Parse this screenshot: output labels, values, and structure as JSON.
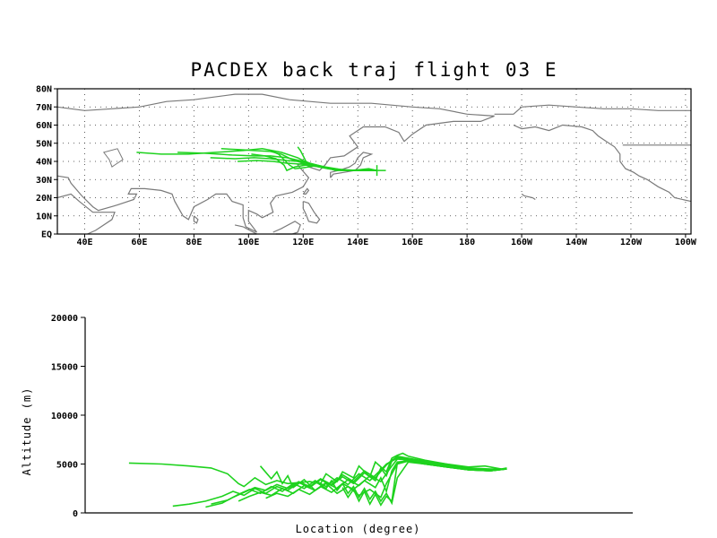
{
  "chart_data": [
    {
      "type": "map",
      "title": "PACDEX back traj flight 03 E",
      "lon_range": [
        30,
        262
      ],
      "lat_range": [
        0,
        80
      ],
      "lon_ticks": [
        {
          "v": 40,
          "label": "40E"
        },
        {
          "v": 60,
          "label": "60E"
        },
        {
          "v": 80,
          "label": "80E"
        },
        {
          "v": 100,
          "label": "100E"
        },
        {
          "v": 120,
          "label": "120E"
        },
        {
          "v": 140,
          "label": "140E"
        },
        {
          "v": 160,
          "label": "160E"
        },
        {
          "v": 180,
          "label": "180"
        },
        {
          "v": 200,
          "label": "160W"
        },
        {
          "v": 220,
          "label": "140W"
        },
        {
          "v": 240,
          "label": "120W"
        },
        {
          "v": 260,
          "label": "100W"
        }
      ],
      "lat_ticks": [
        {
          "v": 0,
          "label": "EQ"
        },
        {
          "v": 10,
          "label": "10N"
        },
        {
          "v": 20,
          "label": "20N"
        },
        {
          "v": 30,
          "label": "30N"
        },
        {
          "v": 40,
          "label": "40N"
        },
        {
          "v": 50,
          "label": "50N"
        },
        {
          "v": 60,
          "label": "60N"
        },
        {
          "v": 70,
          "label": "70N"
        },
        {
          "v": 80,
          "label": "80N"
        }
      ],
      "grid": true,
      "track_color": "#1ed21e",
      "coast_color": "#7a7a7a",
      "end_point": [
        147,
        35
      ],
      "trajectories": [
        [
          [
            59,
            45
          ],
          [
            68,
            44
          ],
          [
            78,
            44
          ],
          [
            88,
            45
          ],
          [
            98,
            46
          ],
          [
            105,
            47
          ],
          [
            112,
            45
          ],
          [
            118,
            42
          ],
          [
            122,
            39
          ],
          [
            127,
            37
          ],
          [
            132,
            35
          ],
          [
            138,
            35
          ],
          [
            144,
            36
          ],
          [
            147,
            35
          ]
        ],
        [
          [
            74,
            45
          ],
          [
            84,
            44.5
          ],
          [
            94,
            43.5
          ],
          [
            102,
            43
          ],
          [
            108,
            43
          ],
          [
            114,
            42
          ],
          [
            120,
            40
          ],
          [
            125,
            38
          ],
          [
            130,
            36
          ],
          [
            136,
            35
          ],
          [
            142,
            35.5
          ],
          [
            147,
            35
          ]
        ],
        [
          [
            86,
            42
          ],
          [
            95,
            41.5
          ],
          [
            102,
            42
          ],
          [
            108,
            41.5
          ],
          [
            114,
            40.5
          ],
          [
            118,
            40
          ],
          [
            122,
            39
          ],
          [
            128,
            37
          ],
          [
            134,
            35.5
          ],
          [
            140,
            35
          ],
          [
            147,
            35
          ]
        ],
        [
          [
            96,
            40
          ],
          [
            103,
            40.5
          ],
          [
            109,
            40
          ],
          [
            114,
            39
          ],
          [
            119,
            38.5
          ],
          [
            124,
            38
          ],
          [
            129,
            36.5
          ],
          [
            135,
            35.2
          ],
          [
            141,
            35
          ],
          [
            147,
            35
          ]
        ],
        [
          [
            101,
            44
          ],
          [
            106,
            43
          ],
          [
            110,
            41.5
          ],
          [
            113,
            38
          ],
          [
            114,
            35
          ],
          [
            117,
            37
          ],
          [
            121,
            38
          ],
          [
            126,
            37
          ],
          [
            131,
            35.5
          ],
          [
            137,
            35
          ],
          [
            143,
            35
          ],
          [
            147,
            35
          ]
        ],
        [
          [
            108,
            46
          ],
          [
            111,
            44
          ],
          [
            113,
            41
          ],
          [
            115,
            38
          ],
          [
            117,
            36
          ],
          [
            120,
            36.5
          ],
          [
            124,
            37.5
          ],
          [
            129,
            36
          ],
          [
            134,
            35
          ],
          [
            140,
            35
          ],
          [
            147,
            35
          ]
        ],
        [
          [
            118,
            48
          ],
          [
            119,
            46
          ],
          [
            120,
            43
          ],
          [
            121,
            40
          ],
          [
            123,
            38.5
          ],
          [
            127,
            37
          ],
          [
            132,
            35.5
          ],
          [
            138,
            35
          ],
          [
            144,
            35.2
          ],
          [
            147,
            35
          ]
        ],
        [
          [
            90,
            47
          ],
          [
            96,
            46.5
          ],
          [
            102,
            46
          ],
          [
            108,
            45.5
          ],
          [
            112,
            44
          ],
          [
            116,
            41
          ],
          [
            120,
            39
          ],
          [
            125,
            37.5
          ],
          [
            130,
            36
          ],
          [
            136,
            35.3
          ],
          [
            142,
            35
          ],
          [
            147,
            35
          ]
        ]
      ]
    },
    {
      "type": "line",
      "xlabel": "Location (degree)",
      "ylabel": "Altitude (m)",
      "ylim": [
        0,
        20000
      ],
      "yticks": [
        0,
        5000,
        10000,
        15000,
        20000
      ],
      "xlim": [
        0,
        100
      ],
      "line_color": "#1ed21e",
      "series": [
        {
          "x": [
            8,
            14,
            19,
            23,
            26,
            28,
            29,
            31,
            33,
            35,
            37,
            39,
            41,
            43,
            44,
            46,
            47,
            49,
            50,
            52,
            53,
            55,
            56,
            57,
            58,
            59,
            62,
            66,
            70,
            73,
            76,
            77
          ],
          "y": [
            5100,
            5000,
            4800,
            4600,
            4000,
            3000,
            2700,
            3600,
            2900,
            3300,
            3000,
            3100,
            3200,
            3000,
            4000,
            3200,
            4200,
            3600,
            4800,
            3700,
            5200,
            4200,
            5600,
            5900,
            6100,
            5800,
            5400,
            5000,
            4700,
            4800,
            4500,
            4600
          ]
        },
        {
          "x": [
            16,
            19,
            22,
            25,
            27,
            29,
            31,
            33,
            35,
            37,
            39,
            41,
            43,
            45,
            47,
            49,
            51,
            53,
            54,
            55,
            56,
            57,
            59,
            62,
            66,
            70,
            74,
            77
          ],
          "y": [
            700,
            900,
            1200,
            1700,
            2200,
            1800,
            2500,
            2000,
            2700,
            2300,
            3100,
            2600,
            3400,
            2800,
            3700,
            3000,
            4100,
            3300,
            4600,
            3800,
            5300,
            5800,
            5600,
            5300,
            5000,
            4600,
            4500,
            4500
          ]
        },
        {
          "x": [
            22,
            25,
            27,
            29,
            31,
            33,
            35,
            37,
            39,
            41,
            43,
            45,
            47,
            49,
            51,
            53,
            55,
            56,
            57,
            59,
            62,
            66,
            70,
            74,
            77
          ],
          "y": [
            600,
            1000,
            1600,
            2100,
            2600,
            2300,
            2900,
            2500,
            3200,
            2700,
            3500,
            2900,
            3900,
            3200,
            4300,
            3600,
            4900,
            5400,
            5700,
            5500,
            5200,
            4900,
            4600,
            4400,
            4500
          ]
        },
        {
          "x": [
            23,
            26,
            28,
            30,
            32,
            34,
            36,
            38,
            40,
            42,
            44,
            46,
            48,
            50,
            52,
            54,
            55,
            57,
            59,
            62,
            66,
            70,
            74,
            77
          ],
          "y": [
            900,
            1300,
            1900,
            2400,
            2000,
            2700,
            2200,
            3000,
            2500,
            3300,
            2700,
            3600,
            2900,
            4000,
            3300,
            4400,
            5000,
            5600,
            5500,
            5200,
            4800,
            4600,
            4400,
            4500
          ]
        },
        {
          "x": [
            28,
            30,
            32,
            34,
            36,
            38,
            40,
            42,
            44,
            46,
            48,
            50,
            52,
            54,
            56,
            57,
            59,
            62,
            66,
            70,
            74,
            77
          ],
          "y": [
            1200,
            1700,
            2100,
            1800,
            2500,
            2000,
            2800,
            2300,
            3100,
            2500,
            3400,
            2800,
            3800,
            3200,
            4800,
            5500,
            5400,
            5100,
            4800,
            4500,
            4400,
            4500
          ]
        },
        {
          "x": [
            33,
            35,
            37,
            39,
            41,
            43,
            45,
            47,
            49,
            51,
            53,
            54,
            55,
            56,
            57,
            59,
            62,
            66,
            70,
            74,
            77
          ],
          "y": [
            1500,
            2000,
            1700,
            2400,
            1900,
            2700,
            2100,
            3000,
            2400,
            3300,
            2600,
            3600,
            2200,
            4300,
            5200,
            5300,
            5000,
            4700,
            4400,
            4300,
            4500
          ]
        },
        {
          "x": [
            32,
            34,
            35,
            36,
            37,
            38,
            40,
            42,
            44,
            46,
            48,
            50,
            52,
            54,
            55,
            57,
            59,
            62,
            66,
            70,
            74,
            77
          ],
          "y": [
            4800,
            3500,
            4200,
            3000,
            3800,
            2600,
            3400,
            2300,
            3000,
            2000,
            2700,
            1800,
            2400,
            1600,
            3000,
            5000,
            5300,
            5000,
            4700,
            4400,
            4300,
            4500
          ]
        },
        {
          "x": [
            42,
            44,
            45,
            46,
            47,
            48,
            49,
            50,
            51,
            52,
            53,
            54,
            55,
            56,
            57,
            59,
            62,
            66,
            70,
            74,
            77
          ],
          "y": [
            3200,
            2500,
            3300,
            2300,
            3000,
            2000,
            2700,
            1600,
            2500,
            1400,
            2200,
            1200,
            2000,
            1000,
            3600,
            5200,
            5000,
            4700,
            4400,
            4300,
            4500
          ]
        },
        {
          "x": [
            47,
            48,
            49,
            50,
            51,
            52,
            53,
            54,
            55,
            56,
            57,
            59,
            62,
            66,
            70,
            74,
            77
          ],
          "y": [
            2600,
            1600,
            2400,
            1200,
            2200,
            900,
            1900,
            800,
            1700,
            1200,
            5100,
            5400,
            5100,
            4800,
            4400,
            4300,
            4500
          ]
        }
      ]
    }
  ]
}
